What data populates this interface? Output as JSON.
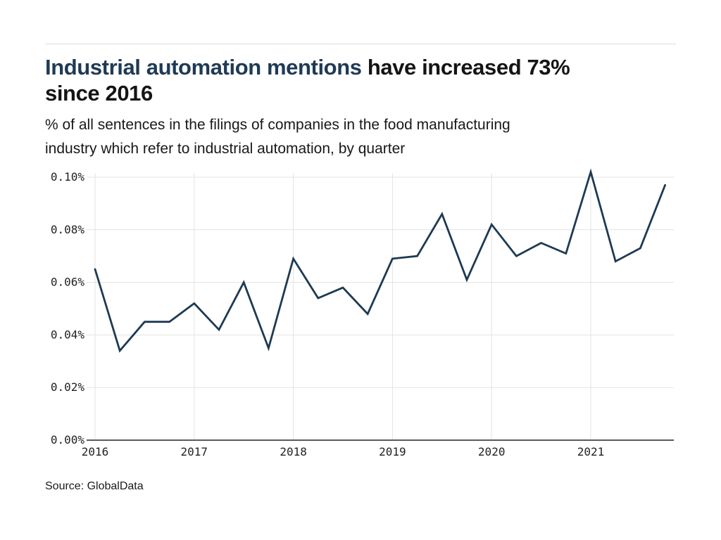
{
  "header": {
    "title_highlight": "Industrial automation mentions",
    "title_rest": "have increased 73%\nsince 2016",
    "subtitle": "% of all sentences in the filings of companies in the food manufacturing\nindustry which refer to industrial automation, by quarter"
  },
  "footer": {
    "source": "Source: GlobalData"
  },
  "colors": {
    "title_highlight": "#1f3a55",
    "line": "#1d3a52",
    "gridline": "#e3e3e3",
    "axis_line": "#5a5a5a",
    "tick_label": "#222222",
    "divider": "#dcdcdc"
  },
  "chart_data": {
    "type": "line",
    "title": "Industrial automation mentions have increased 73% since 2016",
    "subtitle": "% of all sentences in the filings of companies in the food manufacturing industry which refer to industrial automation, by quarter",
    "x_unit": "quarter",
    "x_start": "2016 Q1",
    "x_end": "2021 Q4",
    "x_tick_labels": [
      "2016",
      "2017",
      "2018",
      "2019",
      "2020",
      "2021"
    ],
    "points_per_year": 4,
    "y_ticks": [
      0,
      0.02,
      0.04,
      0.06,
      0.08,
      0.1
    ],
    "y_tick_labels": [
      "0.00%",
      "0.02%",
      "0.04%",
      "0.06%",
      "0.08%",
      "0.10%"
    ],
    "ylim": [
      0,
      0.105
    ],
    "grid": true,
    "legend": "none",
    "series": [
      {
        "name": "% of sentences mentioning industrial automation",
        "values": [
          0.065,
          0.034,
          0.045,
          0.045,
          0.052,
          0.042,
          0.06,
          0.035,
          0.069,
          0.054,
          0.058,
          0.048,
          0.069,
          0.07,
          0.086,
          0.061,
          0.082,
          0.07,
          0.075,
          0.071,
          0.102,
          0.068,
          0.073,
          0.097
        ]
      }
    ],
    "source": "Source: GlobalData"
  }
}
